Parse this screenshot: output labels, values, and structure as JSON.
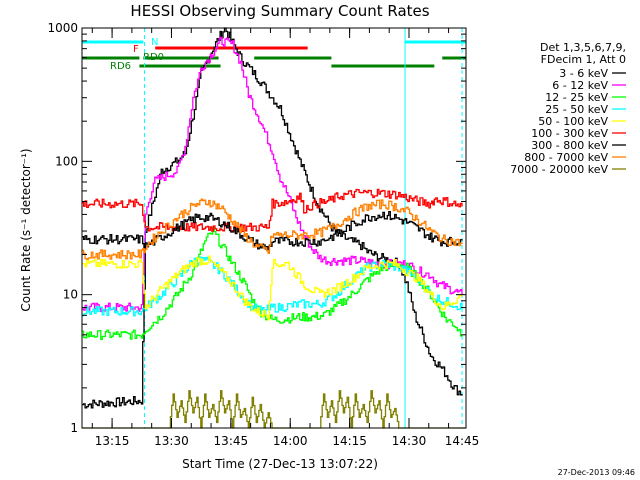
{
  "chart_data": {
    "type": "line",
    "title": "HESSI Observing Summary Count Rates",
    "xlabel": "Start Time (27-Dec-13 13:07:22)",
    "ylabel": "Count Rate (s⁻¹ detector⁻¹)",
    "yscale": "log",
    "ylim": [
      1,
      1000
    ],
    "xlim_minutes": [
      0,
      97
    ],
    "x_ticks": [
      "13:15",
      "13:30",
      "13:45",
      "14:00",
      "14:15",
      "14:30",
      "14:45"
    ],
    "x_tick_minutes": [
      7.6,
      22.6,
      37.6,
      52.6,
      67.6,
      82.6,
      97.6
    ],
    "y_ticks": [
      "1",
      "10",
      "100",
      "1000"
    ],
    "y_tick_values": [
      1,
      10,
      100,
      1000
    ],
    "legend_header": [
      "Det 1,3,5,6,7,9,",
      "FDecim 1, Att 0"
    ],
    "legend_position": "right",
    "series": [
      {
        "name": "3 - 6 keV",
        "color": "#000000",
        "x": [
          0,
          15,
          16,
          20,
          24,
          26,
          28,
          30,
          33,
          36,
          40,
          45,
          50,
          55,
          58,
          60,
          63,
          65,
          68,
          70,
          72,
          75,
          78,
          80,
          82,
          84,
          86,
          88,
          90,
          92,
          94,
          96
        ],
        "y": [
          1.5,
          1.6,
          30,
          85,
          100,
          115,
          220,
          450,
          700,
          1000,
          600,
          400,
          250,
          100,
          60,
          45,
          32,
          28,
          25,
          24,
          21,
          19,
          18,
          17,
          12,
          7,
          5,
          3.5,
          3,
          2.5,
          2,
          1.8
        ]
      },
      {
        "name": "6 - 12 keV",
        "color": "#ff00ff",
        "x": [
          0,
          15,
          16,
          18,
          20,
          22,
          24,
          26,
          28,
          30,
          32,
          35,
          38,
          40,
          42,
          45,
          48,
          50,
          52,
          54,
          56,
          58,
          60,
          62,
          65,
          68,
          70,
          75,
          80,
          82,
          85,
          88,
          90,
          93,
          96
        ],
        "y": [
          8,
          8,
          40,
          70,
          75,
          80,
          85,
          130,
          300,
          500,
          600,
          800,
          750,
          550,
          320,
          200,
          120,
          75,
          55,
          38,
          28,
          22,
          19,
          18,
          18,
          18,
          18,
          17,
          17,
          17,
          15,
          14,
          12,
          11,
          10
        ]
      },
      {
        "name": "12 - 25 keV",
        "color": "#00ff00",
        "x": [
          0,
          15,
          16,
          20,
          24,
          28,
          31,
          33,
          35,
          38,
          41,
          44,
          46,
          48,
          50,
          55,
          58,
          61,
          64,
          68,
          72,
          76,
          80,
          82,
          84,
          86,
          88,
          90,
          92,
          94,
          96
        ],
        "y": [
          5,
          5,
          5.5,
          7,
          10,
          15,
          25,
          30,
          24,
          17,
          12,
          8,
          7,
          6.5,
          6.5,
          6.8,
          6.8,
          7,
          8,
          10,
          13,
          16,
          17,
          16,
          14,
          12,
          10,
          8,
          6.5,
          6,
          5
        ]
      },
      {
        "name": "25 - 50 keV",
        "color": "#00ffff",
        "x": [
          0,
          15,
          16,
          20,
          25,
          28,
          31,
          34,
          37,
          40,
          43,
          46,
          48,
          50,
          55,
          60,
          64,
          68,
          72,
          76,
          80,
          82,
          85,
          88,
          91,
          94,
          96
        ],
        "y": [
          7.5,
          7.5,
          8,
          10,
          14,
          18,
          18,
          16,
          13,
          10,
          8,
          7.5,
          8,
          8,
          8.5,
          8.5,
          10,
          13,
          16,
          17,
          16,
          15,
          13,
          10,
          9,
          8.5,
          8
        ]
      },
      {
        "name": "50 - 100 keV",
        "color": "#ffff00",
        "x": [
          0,
          15,
          16,
          20,
          25,
          29,
          32,
          35,
          38,
          41,
          44,
          47,
          48,
          52,
          56,
          60,
          64,
          68,
          72,
          76,
          79,
          82,
          85,
          88,
          91,
          94,
          96
        ],
        "y": [
          17,
          17,
          8,
          11,
          15,
          18,
          18,
          15,
          12,
          9,
          7.5,
          7,
          17,
          17,
          12,
          10,
          11,
          13,
          16,
          17,
          17,
          15,
          13,
          10,
          8,
          9,
          10
        ]
      },
      {
        "name": "100 - 300 keV",
        "color": "#ff0000",
        "x": [
          0,
          15,
          16,
          30,
          44,
          47,
          48,
          52,
          55,
          56,
          59,
          62,
          65,
          70,
          75,
          80,
          85,
          88,
          89,
          92,
          96
        ],
        "y": [
          48,
          48,
          32,
          32,
          32,
          32,
          48,
          50,
          55,
          44,
          48,
          50,
          55,
          58,
          58,
          56,
          50,
          48,
          52,
          50,
          46
        ]
      },
      {
        "name": "300 - 800 keV",
        "color": "#000000",
        "x": [
          0,
          15,
          16,
          20,
          25,
          29,
          32,
          35,
          38,
          41,
          44,
          47,
          48,
          52,
          56,
          60,
          64,
          68,
          72,
          76,
          79,
          82,
          85,
          88,
          91,
          94,
          96
        ],
        "y": [
          26,
          26,
          23,
          27,
          33,
          38,
          38,
          35,
          31,
          27,
          24,
          22,
          25,
          25,
          25,
          25,
          28,
          33,
          38,
          40,
          38,
          35,
          31,
          27,
          25,
          25,
          26
        ]
      },
      {
        "name": "800 - 7000 keV",
        "color": "#ff8000",
        "x": [
          0,
          15,
          16,
          20,
          25,
          29,
          32,
          35,
          38,
          41,
          44,
          47,
          48,
          52,
          56,
          60,
          64,
          68,
          72,
          76,
          79,
          82,
          85,
          88,
          91,
          94,
          96
        ],
        "y": [
          20,
          20,
          23,
          30,
          40,
          48,
          50,
          45,
          36,
          28,
          23,
          21,
          28,
          28,
          28,
          29,
          33,
          40,
          46,
          48,
          46,
          42,
          36,
          30,
          26,
          25,
          24
        ]
      },
      {
        "name": "7000 - 20000 keV",
        "color": "#808000",
        "x": [
          0,
          22,
          23,
          24,
          25,
          26,
          27,
          28,
          29,
          30,
          31,
          32,
          33,
          34,
          35,
          36,
          37,
          38,
          39,
          40,
          41,
          42,
          43,
          44,
          45,
          46,
          47,
          48,
          49,
          50,
          60,
          61,
          62,
          63,
          64,
          65,
          66,
          67,
          68,
          69,
          70,
          71,
          72,
          73,
          74,
          75,
          76,
          77,
          78,
          79,
          80,
          81,
          97
        ],
        "y": [
          1,
          1,
          1.8,
          1.2,
          1.6,
          1.1,
          1.9,
          1.3,
          1.7,
          1.0,
          1.8,
          1.2,
          1.5,
          1.1,
          1.9,
          1.3,
          1.6,
          1.0,
          1.8,
          1.2,
          1.4,
          1.0,
          1.7,
          1.1,
          1.5,
          1.0,
          1.3,
          1.0,
          1.0,
          1,
          1,
          1.8,
          1.2,
          1.6,
          1.1,
          1.9,
          1.3,
          1.7,
          1.0,
          1.8,
          1.2,
          1.5,
          1.1,
          1.9,
          1.3,
          1.6,
          1.0,
          1.8,
          1.2,
          1.4,
          1.0,
          1,
          1
        ]
      }
    ],
    "flag_bars": [
      {
        "name": "N",
        "color": "#00ffff",
        "segments": [
          [
            0,
            15.5
          ],
          [
            81.5,
            97
          ]
        ]
      },
      {
        "name": "F",
        "color": "#ff0000",
        "segments": [
          [
            18.5,
            57
          ]
        ]
      },
      {
        "name": "RD0",
        "color": "#008000",
        "segments": [
          [
            0,
            14.5
          ],
          [
            15.5,
            34.5
          ],
          [
            43.5,
            63
          ],
          [
            91,
            97
          ]
        ]
      },
      {
        "name": "RD6",
        "color": "#008000",
        "segments": [
          [
            14.5,
            35
          ],
          [
            63,
            89
          ]
        ]
      }
    ],
    "vertical_markers": [
      {
        "minute": 15.8,
        "color": "#00ffff",
        "style": "dashed"
      },
      {
        "minute": 81.6,
        "color": "#00ffff",
        "style": "solid"
      },
      {
        "minute": 96.0,
        "color": "#00ffff",
        "style": "dashed"
      }
    ],
    "grid": false
  },
  "timestamp": "27-Dec-2013 09:46"
}
